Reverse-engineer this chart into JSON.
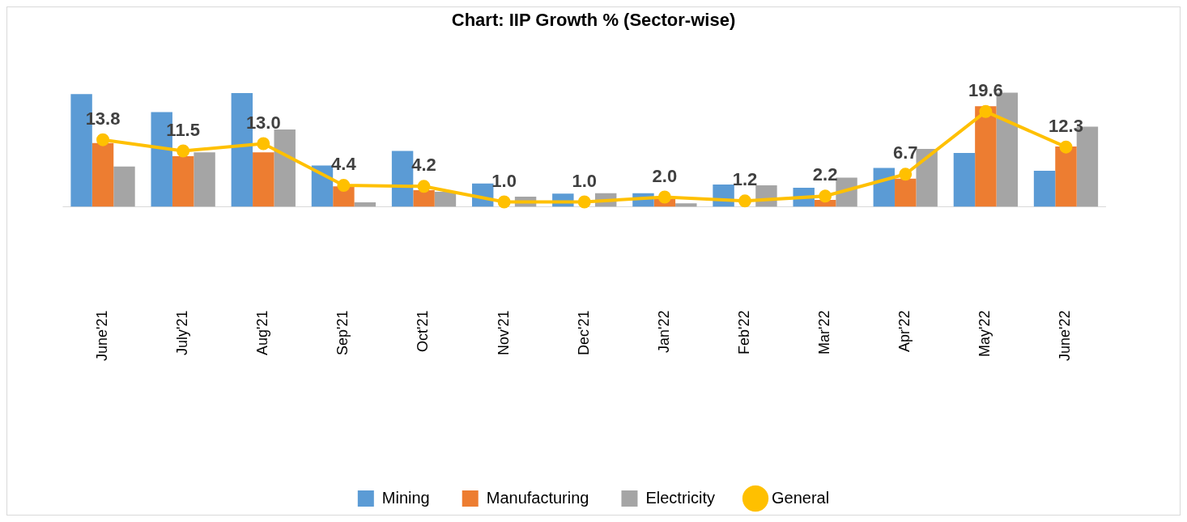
{
  "chart_data": {
    "type": "bar",
    "title": "Chart: IIP Growth % (Sector-wise)",
    "categories": [
      "June'21",
      "July'21",
      "Aug'21",
      "Sep'21",
      "Oct'21",
      "Nov'21",
      "Dec'21",
      "Jan'22",
      "Feb'22",
      "Mar'22",
      "Apr'22",
      "May'22",
      "June'22"
    ],
    "series": [
      {
        "name": "Mining",
        "color": "#5b9bd5",
        "values": [
          23.2,
          19.5,
          23.4,
          8.5,
          11.5,
          4.8,
          2.7,
          2.8,
          4.6,
          3.9,
          8.0,
          11.1,
          7.4
        ]
      },
      {
        "name": "Manufacturing",
        "color": "#ed7d31",
        "values": [
          13.1,
          10.4,
          11.2,
          4.2,
          3.4,
          null,
          null,
          1.6,
          null,
          1.4,
          5.8,
          20.7,
          12.4
        ]
      },
      {
        "name": "Electricity",
        "color": "#a5a5a5",
        "values": [
          8.3,
          11.2,
          15.9,
          0.9,
          3.1,
          2.1,
          2.8,
          0.7,
          4.4,
          6.0,
          11.9,
          23.5,
          16.5
        ]
      },
      {
        "name": "General",
        "type": "line",
        "color": "#ffc000",
        "marker": "circle",
        "values": [
          13.8,
          11.5,
          13.0,
          4.4,
          4.2,
          1.0,
          1.0,
          2.0,
          1.2,
          2.2,
          6.7,
          19.6,
          12.3
        ],
        "value_labels": [
          "13.8",
          "11.5",
          "13.0",
          "4.4",
          "4.2",
          "1.0",
          "1.0",
          "2.0",
          "1.2",
          "2.2",
          "6.7",
          "19.6",
          "12.3"
        ]
      }
    ],
    "tick_labels": "x",
    "grid": false,
    "legend": "bottom"
  }
}
